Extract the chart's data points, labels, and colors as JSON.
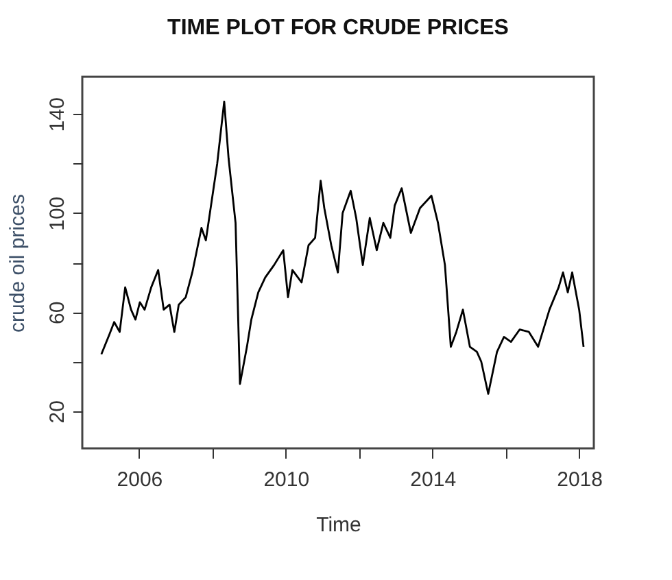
{
  "chart_data": {
    "type": "line",
    "title": "TIME PLOT FOR CRUDE PRICES",
    "xlabel": "Time",
    "ylabel": "crude oil prices",
    "x": [
      2004.97,
      2005.19,
      2005.32,
      2005.47,
      2005.62,
      2005.78,
      2005.9,
      2006.02,
      2006.15,
      2006.33,
      2006.52,
      2006.67,
      2006.83,
      2006.96,
      2007.08,
      2007.27,
      2007.45,
      2007.7,
      2007.82,
      2007.95,
      2008.13,
      2008.32,
      2008.44,
      2008.63,
      2008.75,
      2008.94,
      2009.06,
      2009.25,
      2009.44,
      2009.68,
      2009.93,
      2010.06,
      2010.18,
      2010.43,
      2010.62,
      2010.8,
      2010.95,
      2011.05,
      2011.24,
      2011.42,
      2011.55,
      2011.77,
      2011.92,
      2012.1,
      2012.29,
      2012.48,
      2012.66,
      2012.85,
      2012.97,
      2013.16,
      2013.41,
      2013.66,
      2013.97,
      2014.15,
      2014.34,
      2014.5,
      2014.65,
      2014.83,
      2015.02,
      2015.21,
      2015.33,
      2015.52,
      2015.76,
      2015.95,
      2016.14,
      2016.38,
      2016.63,
      2016.88,
      2017.19,
      2017.44,
      2017.56,
      2017.69,
      2017.81,
      2018.0,
      2018.12
    ],
    "series": [
      {
        "color": "#000000",
        "values": [
          43,
          51,
          56,
          52,
          70,
          61,
          57,
          64,
          61,
          70,
          77,
          61,
          63,
          52,
          63,
          66,
          76,
          94,
          89,
          102,
          120,
          145,
          122,
          96,
          31,
          46,
          57,
          68,
          74,
          79,
          85,
          66,
          77,
          72,
          87,
          90,
          113,
          102,
          87,
          76,
          100,
          109,
          98,
          79,
          98,
          85,
          96,
          90,
          103,
          110,
          92,
          102,
          107,
          96,
          79,
          46,
          52,
          61,
          46,
          44,
          40,
          27,
          44,
          50,
          48,
          53,
          52,
          46,
          61,
          70,
          76,
          68,
          76,
          61,
          46
        ]
      }
    ],
    "xlim": [
      2004.45,
      2018.4
    ],
    "ylim": [
      5,
      155
    ],
    "xticks": [
      2006,
      {
        "value": 2008,
        "label": null
      },
      2010,
      {
        "value": 2012,
        "label": null
      },
      2014,
      {
        "value": 2016,
        "label": null
      },
      2018
    ],
    "yticks": [
      20,
      {
        "value": 40,
        "label": null
      },
      60,
      {
        "value": 80,
        "label": null
      },
      100,
      {
        "value": 120,
        "label": null
      },
      140
    ],
    "grid": false,
    "marker": "none",
    "line_style": "solid"
  }
}
